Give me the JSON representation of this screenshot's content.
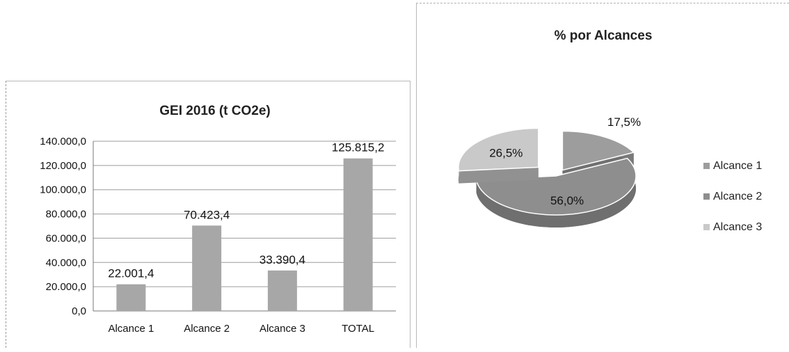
{
  "chart_data": [
    {
      "type": "bar",
      "title": "GEI 2016 (t CO2e)",
      "categories": [
        "Alcance 1",
        "Alcance 2",
        "Alcance 3",
        "TOTAL"
      ],
      "values": [
        22001.4,
        70423.4,
        33390.4,
        125815.2
      ],
      "data_labels": [
        "22.001,4",
        "70.423,4",
        "33.390,4",
        "125.815,2"
      ],
      "ylim": [
        0,
        140000
      ],
      "y_ticks": [
        "0,0",
        "20.000,0",
        "40.000,0",
        "60.000,0",
        "80.000,0",
        "100.000,0",
        "120.000,0",
        "140.000,0"
      ],
      "grid": true,
      "bar_color": "#a7a7a7"
    },
    {
      "type": "pie",
      "title": "% por Alcances",
      "labels": [
        "Alcance 1",
        "Alcance 2",
        "Alcance 3"
      ],
      "values": [
        17.5,
        56.0,
        26.5
      ],
      "data_labels": [
        "17,5%",
        "56,0%",
        "26,5%"
      ],
      "colors": [
        "#9d9d9d",
        "#8e8e8e",
        "#c9c9c9"
      ],
      "legend": "right",
      "style": "3d-exploded"
    }
  ]
}
